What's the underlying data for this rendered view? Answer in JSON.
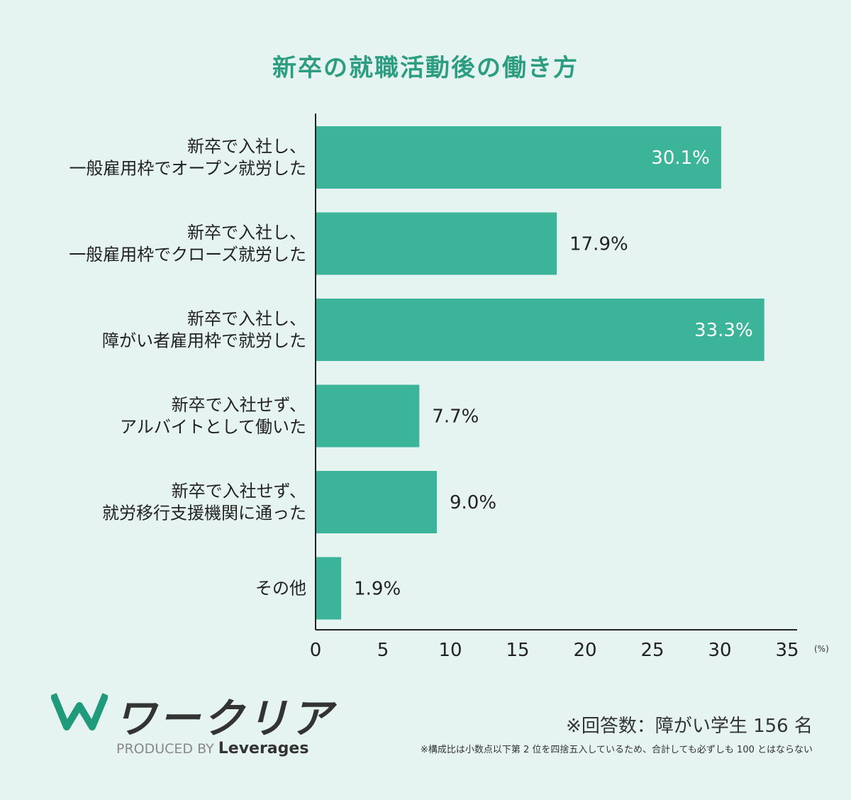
{
  "chart_data": {
    "type": "bar",
    "orientation": "horizontal",
    "title": "新卒の就職活動後の働き方",
    "categories": [
      [
        "新卒で入社し、",
        "一般雇用枠でオープン就労した"
      ],
      [
        "新卒で入社し、",
        "一般雇用枠でクローズ就労した"
      ],
      [
        "新卒で入社し、",
        "障がい者雇用枠で就労した"
      ],
      [
        "新卒で入社せず、",
        "アルバイトとして働いた"
      ],
      [
        "新卒で入社せず、",
        "就労移行支援機関に通った"
      ],
      [
        "その他"
      ]
    ],
    "values": [
      30.1,
      17.9,
      33.3,
      7.7,
      9.0,
      1.9
    ],
    "value_labels": [
      "30.1%",
      "17.9%",
      "33.3%",
      "7.7%",
      "9.0%",
      "1.9%"
    ],
    "xlim": [
      0,
      35
    ],
    "xticks": [
      "0",
      "5",
      "10",
      "15",
      "20",
      "25",
      "30",
      "35"
    ],
    "xunit": "(%)",
    "grid": false,
    "bar_color": "#3bb499"
  },
  "footer": {
    "respondents": "※回答数：障がい学生 156 名",
    "note": "※構成比は小数点以下第 2 位を四捨五入しているため、合計しても必ずしも 100 とはならない"
  },
  "logo": {
    "name": "ワークリア",
    "produced_by": "PRODUCED BY",
    "brand": "Leverages"
  },
  "colors": {
    "title": "#2c9d80",
    "background": "#e6f4f1",
    "bar": "#3bb499"
  }
}
